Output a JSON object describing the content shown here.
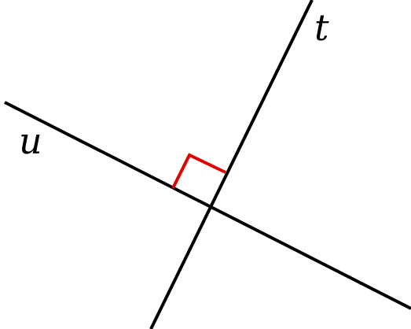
{
  "diagram": {
    "lines": [
      {
        "id": "t",
        "label": "t"
      },
      {
        "id": "u",
        "label": "u"
      }
    ],
    "right_angle_marker": {
      "between": [
        "t",
        "u"
      ]
    },
    "colors": {
      "line": "#000000",
      "right_angle_marker": "#e00000",
      "label": "#000000"
    }
  }
}
